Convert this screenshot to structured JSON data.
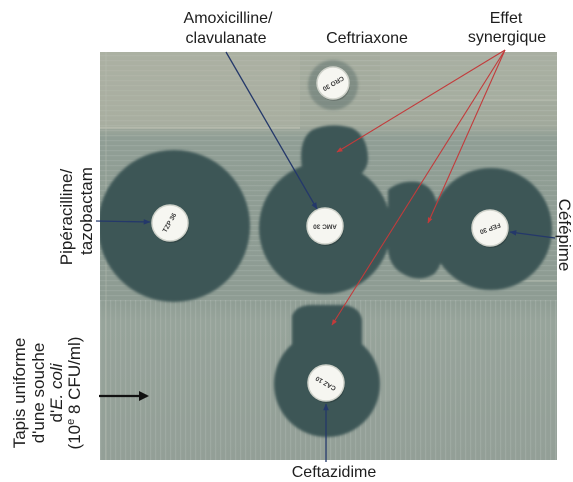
{
  "figure": {
    "labels": {
      "amoxicilline_clavulanate": [
        "Amoxicilline/",
        "clavulanate"
      ],
      "ceftriaxone": "Ceftriaxone",
      "effet_synergique": [
        "Effet",
        "synergique"
      ],
      "piperacilline_tazobactam": [
        "Pipéracilline/",
        "tazobactam"
      ],
      "cefepime": "Céfépime",
      "ceftazidime": "Ceftazidime",
      "tapis": {
        "line1": "Tapis uniforme",
        "line2": "d'une souche",
        "line3_prefix": "d'",
        "line3_species": "E. coli",
        "line4_start": "(10",
        "line4_sup": "e",
        "line4_end": " 8 CFU/ml)"
      }
    },
    "disks": {
      "ceftriaxone": "CRO 30",
      "piperacilline_tazobactam": "TZP 36",
      "amoxicilline_clavulanate": "AMC 30",
      "cefepime": "FEP 30",
      "ceftazidime": "CAZ 10"
    }
  },
  "colors": {
    "pointer_blue": "#24386a",
    "synergy_red": "#c23b3b",
    "pointer_black": "#111111",
    "inhibition_zone": "#3e5756",
    "label_text": "#1e1e1e"
  }
}
